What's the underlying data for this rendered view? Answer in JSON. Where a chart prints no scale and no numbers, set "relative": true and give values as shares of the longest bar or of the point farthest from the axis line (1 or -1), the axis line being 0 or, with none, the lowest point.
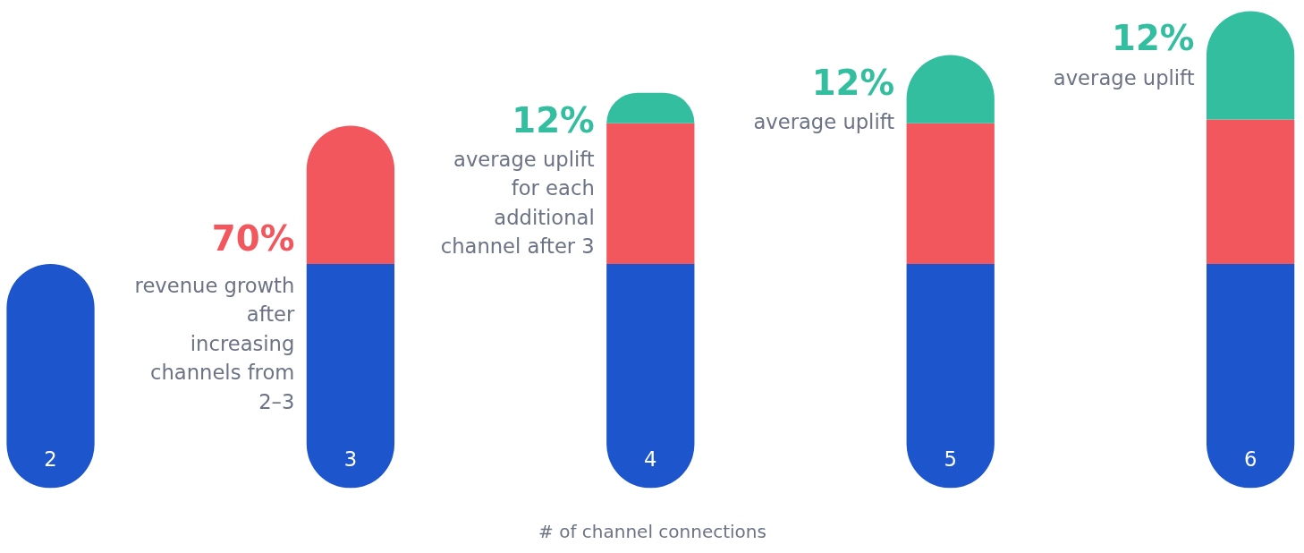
{
  "chart_data": {
    "type": "bar",
    "stacked": true,
    "relative": true,
    "xlabel": "# of channel connections",
    "categories": [
      "2",
      "3",
      "4",
      "5",
      "6"
    ],
    "series": [
      {
        "color": "#1d55cc",
        "values": [
          0.47,
          0.47,
          0.47,
          0.47,
          0.47
        ]
      },
      {
        "color": "#f2575d",
        "values": [
          null,
          0.29,
          0.295,
          0.295,
          0.303
        ]
      },
      {
        "color": "#33bf9f",
        "values": [
          null,
          null,
          0.064,
          0.143,
          0.227
        ]
      }
    ],
    "annotations": [
      "70%",
      "revenue growth after increasing channels from 2–3",
      "12%",
      "average uplift for each additional channel after 3",
      "12%",
      "average uplift",
      "12%",
      "average uplift"
    ]
  }
}
